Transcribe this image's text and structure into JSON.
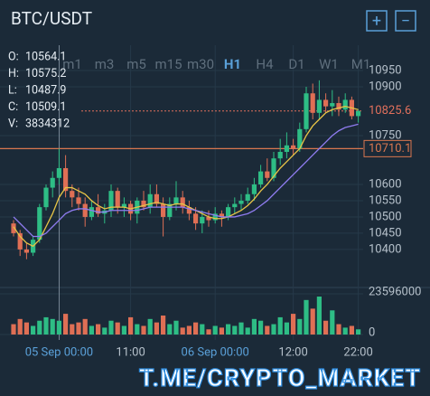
{
  "header": {
    "title": "BTC/USDT",
    "buttons": [
      "+",
      "−"
    ]
  },
  "info": [
    {
      "label": "O:",
      "value": 10564.1
    },
    {
      "label": "H:",
      "value": 10575.2
    },
    {
      "label": "L:",
      "value": 10487.9
    },
    {
      "label": "C:",
      "value": 10509.1
    },
    {
      "label": "V:",
      "value": 3834312
    }
  ],
  "timeframes": {
    "items": [
      "m1",
      "m3",
      "m5",
      "m15",
      "m30",
      "H1",
      "H4",
      "D1",
      "W1",
      "M1"
    ],
    "active": 5
  },
  "chart_data": {
    "type": "candlestick",
    "categories": [
      null,
      null,
      null,
      null,
      null,
      null,
      null,
      "05 Sep 00:00",
      null,
      null,
      null,
      null,
      null,
      null,
      null,
      null,
      null,
      null,
      "11:00",
      null,
      null,
      null,
      null,
      null,
      null,
      null,
      null,
      null,
      null,
      null,
      null,
      "06 Sep 00:00",
      null,
      null,
      null,
      null,
      null,
      null,
      null,
      null,
      null,
      null,
      null,
      "12:00",
      null,
      null,
      null,
      null,
      null,
      null,
      null,
      null,
      null,
      "22:00"
    ],
    "open": [
      10480,
      10450,
      10400,
      10390,
      10430,
      10530,
      10590,
      10620,
      10650,
      10580,
      10560,
      10540,
      10500,
      10530,
      10510,
      10520,
      10580,
      10530,
      10540,
      10510,
      10550,
      10530,
      10570,
      10540,
      10500,
      10540,
      10560,
      10530,
      10510,
      10480,
      10500,
      10490,
      10510,
      10500,
      10530,
      10540,
      10550,
      10570,
      10600,
      10640,
      10620,
      10680,
      10700,
      10720,
      10710,
      10770,
      10880,
      10820,
      10860,
      10840,
      10850,
      10830,
      10860,
      10810
    ],
    "high": [
      10490,
      10460,
      10420,
      10440,
      10540,
      10600,
      10640,
      10710,
      10690,
      10600,
      10590,
      10560,
      10550,
      10570,
      10540,
      10600,
      10590,
      10560,
      10550,
      10560,
      10580,
      10600,
      10600,
      10560,
      10560,
      10610,
      10580,
      10550,
      10530,
      10520,
      10520,
      10530,
      10520,
      10540,
      10560,
      10570,
      10590,
      10620,
      10660,
      10680,
      10700,
      10740,
      10760,
      10740,
      10790,
      10900,
      10910,
      10920,
      10880,
      10890,
      10870,
      10880,
      10870,
      10830
    ],
    "low": [
      10440,
      10380,
      10370,
      10380,
      10420,
      10520,
      10560,
      10600,
      10560,
      10530,
      10520,
      10470,
      10490,
      10500,
      10480,
      10500,
      10510,
      10500,
      10490,
      10480,
      10520,
      10510,
      10530,
      10440,
      10490,
      10520,
      10510,
      10490,
      10460,
      10450,
      10470,
      10480,
      10470,
      10490,
      10510,
      10520,
      10540,
      10550,
      10590,
      10610,
      10610,
      10660,
      10680,
      10690,
      10700,
      10760,
      10800,
      10800,
      10820,
      10810,
      10810,
      10820,
      10800,
      10790
    ],
    "close": [
      10450,
      10400,
      10390,
      10430,
      10530,
      10590,
      10620,
      10650,
      10580,
      10560,
      10540,
      10500,
      10530,
      10510,
      10520,
      10580,
      10530,
      10540,
      10510,
      10550,
      10530,
      10570,
      10540,
      10500,
      10540,
      10560,
      10530,
      10510,
      10480,
      10500,
      10490,
      10510,
      10500,
      10530,
      10540,
      10550,
      10570,
      10600,
      10640,
      10620,
      10680,
      10700,
      10720,
      10710,
      10770,
      10880,
      10820,
      10860,
      10840,
      10850,
      10830,
      10860,
      10810,
      10825.6
    ],
    "up_color": "#2ebd85",
    "down_color": "#df6f55",
    "series": [
      {
        "color": "#e8c547",
        "values": [
          10470,
          10440,
          10420,
          10410,
          10430,
          10470,
          10510,
          10560,
          10590,
          10590,
          10580,
          10570,
          10550,
          10535,
          10525,
          10530,
          10530,
          10530,
          10525,
          10530,
          10535,
          10540,
          10545,
          10540,
          10535,
          10540,
          10540,
          10530,
          10520,
          10510,
          10500,
          10495,
          10495,
          10500,
          10510,
          10520,
          10535,
          10555,
          10580,
          10600,
          10625,
          10650,
          10670,
          10690,
          10710,
          10750,
          10780,
          10800,
          10820,
          10830,
          10835,
          10840,
          10835,
          10830
        ]
      },
      {
        "color": "#8f7cf0",
        "values": [
          10500,
          10480,
          10460,
          10440,
          10440,
          10450,
          10470,
          10490,
          10510,
          10520,
          10525,
          10525,
          10520,
          10515,
          10515,
          10520,
          10520,
          10520,
          10520,
          10520,
          10525,
          10530,
          10530,
          10530,
          10530,
          10530,
          10530,
          10525,
          10520,
          10515,
          10510,
          10505,
          10500,
          10500,
          10500,
          10505,
          10510,
          10520,
          10535,
          10550,
          10570,
          10590,
          10610,
          10630,
          10650,
          10670,
          10690,
          10710,
          10730,
          10750,
          10765,
          10775,
          10780,
          10785
        ]
      }
    ],
    "ylim": [
      10283,
      11028
    ],
    "yticks": [
      10400,
      10450,
      10500,
      10550,
      10600,
      10750,
      10900,
      10950
    ],
    "price_line": {
      "value": 10825.6,
      "color": "#e2705c"
    },
    "level_line": {
      "value": 10710.1,
      "color": "#d9774f"
    },
    "volume": {
      "values": [
        6000000,
        9000000,
        7000000,
        5000000,
        8000000,
        10000000,
        9000000,
        8000000,
        12000000,
        6000000,
        7000000,
        9000000,
        5000000,
        6000000,
        4000000,
        8000000,
        7000000,
        5000000,
        10000000,
        6000000,
        5000000,
        9000000,
        7000000,
        11000000,
        6000000,
        8000000,
        4000000,
        5000000,
        7000000,
        6000000,
        3000000,
        5000000,
        4000000,
        6000000,
        5000000,
        7000000,
        4000000,
        9000000,
        8000000,
        5000000,
        6000000,
        10000000,
        7000000,
        12000000,
        9000000,
        20000000,
        15000000,
        22000000,
        8000000,
        14000000,
        6000000,
        4000000,
        5000000,
        3000000
      ],
      "ylim": [
        0,
        26200000
      ],
      "yticks": [
        0,
        23596000
      ]
    }
  },
  "watermark": "T.ME/CRYPTO_MARKET"
}
